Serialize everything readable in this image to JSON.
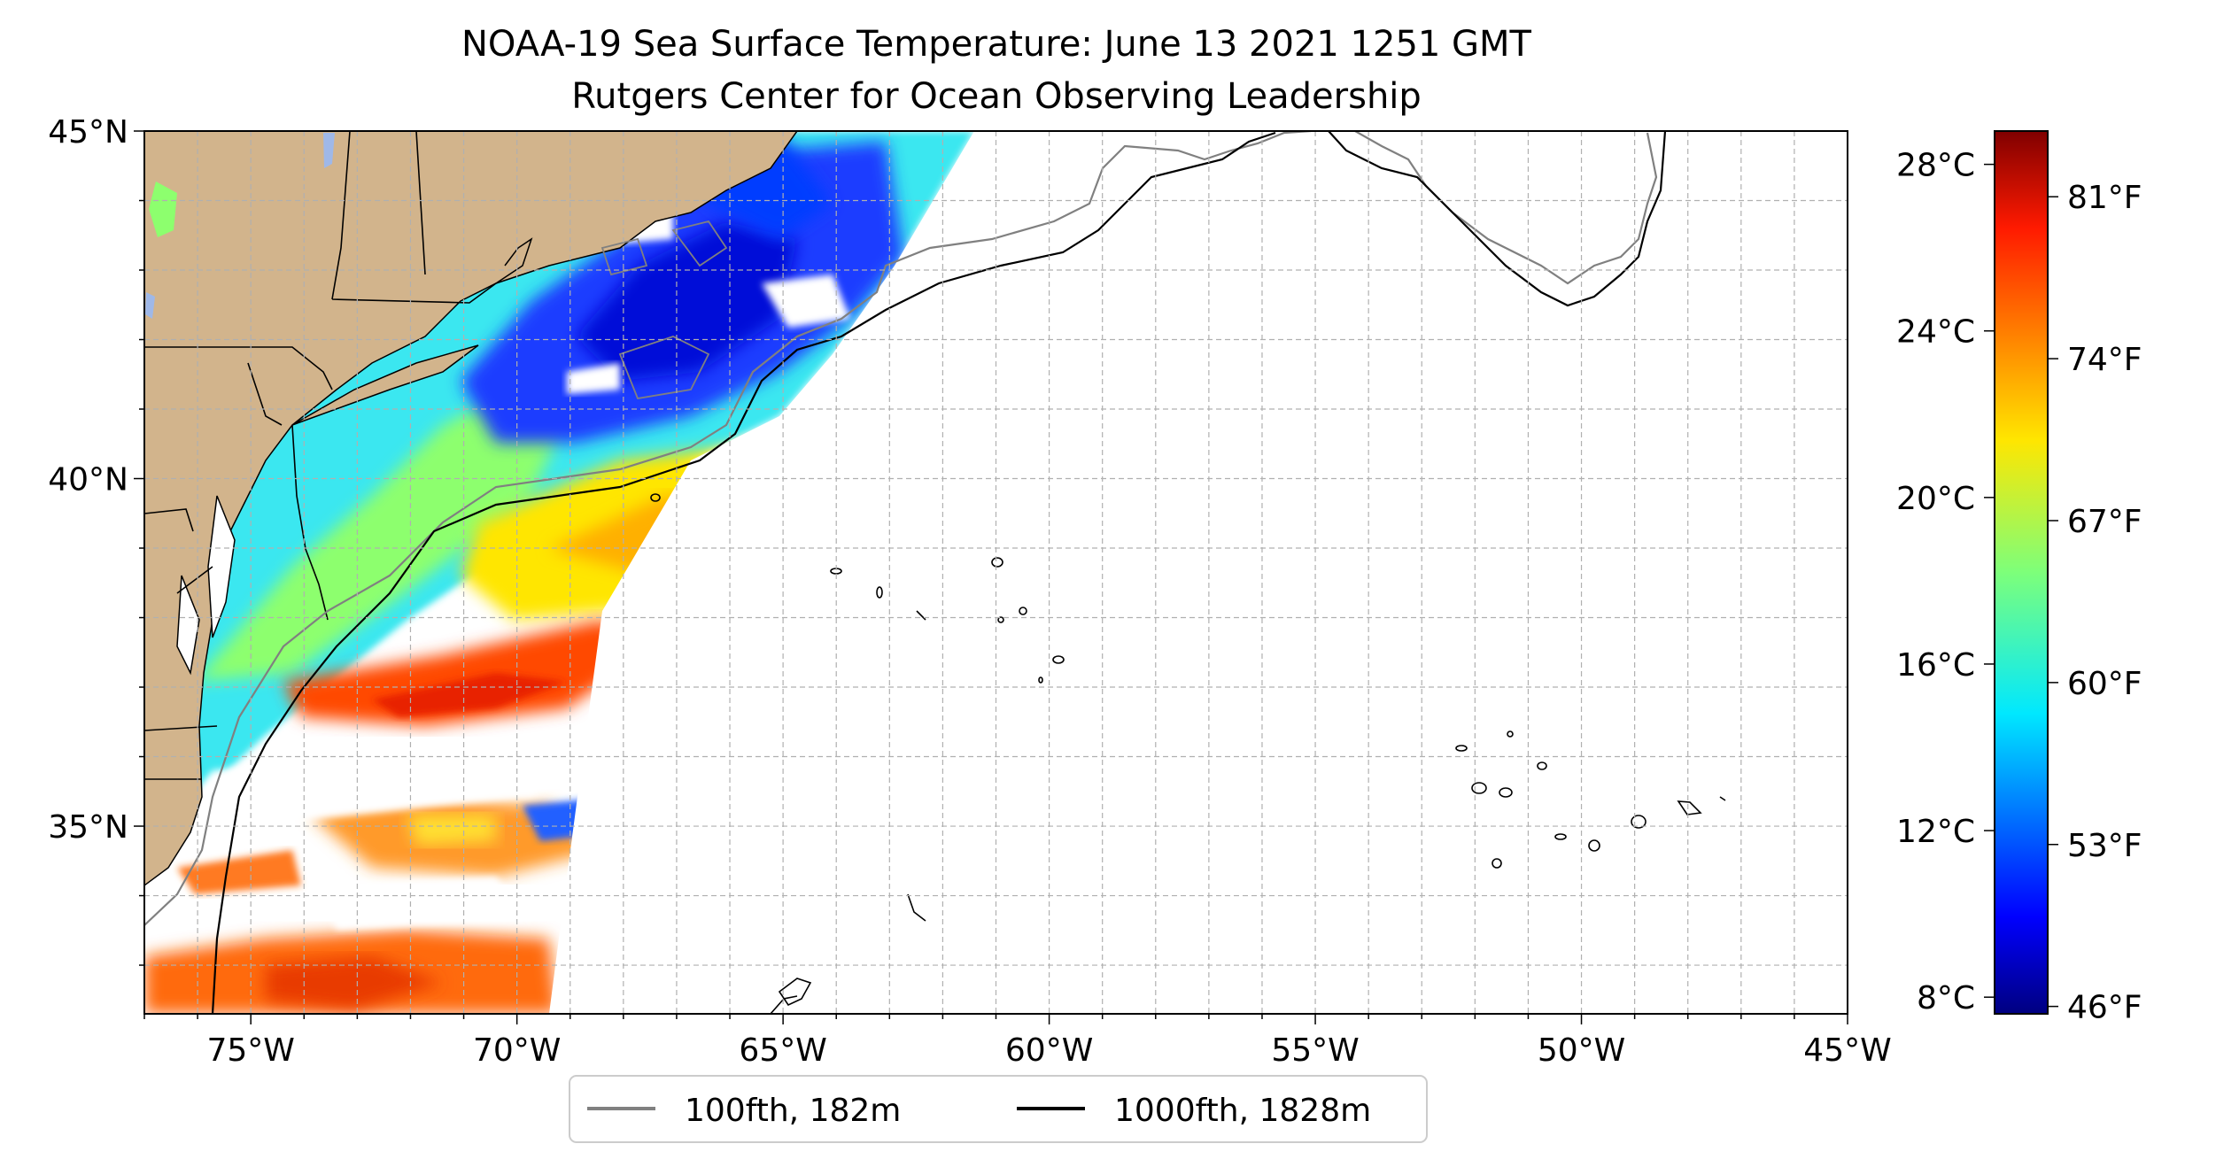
{
  "title_line1": "NOAA-19 Sea Surface Temperature: June 13 2021 1251 GMT",
  "title_line2": "Rutgers Center for Ocean Observing Leadership",
  "map": {
    "lon_range": [
      -77,
      -45
    ],
    "lat_range": [
      32.3,
      45
    ],
    "lon_ticks": [
      -75,
      -70,
      -65,
      -60,
      -55,
      -50,
      -45
    ],
    "lon_tick_labels": [
      "75°W",
      "70°W",
      "65°W",
      "60°W",
      "55°W",
      "50°W",
      "45°W"
    ],
    "lat_ticks": [
      35,
      40,
      45
    ],
    "lat_tick_labels": [
      "35°N",
      "40°N",
      "45°N"
    ],
    "land_color": "#d2b48c",
    "grid": true
  },
  "colorbar": {
    "colormap": "jet",
    "range_c": [
      7.6,
      28.8
    ],
    "celsius_ticks": [
      8,
      12,
      16,
      20,
      24,
      28
    ],
    "celsius_labels": [
      "8°C",
      "12°C",
      "16°C",
      "20°C",
      "24°C",
      "28°C"
    ],
    "fahrenheit_ticks": [
      46,
      53,
      60,
      67,
      74,
      81
    ],
    "fahrenheit_labels": [
      "46°F",
      "53°F",
      "60°F",
      "67°F",
      "74°F",
      "81°F"
    ]
  },
  "legend": {
    "placement": "bottom-center",
    "items": [
      {
        "label": "100fth, 182m",
        "color": "#808080"
      },
      {
        "label": "1000fth, 1828m",
        "color": "#000000"
      }
    ]
  }
}
